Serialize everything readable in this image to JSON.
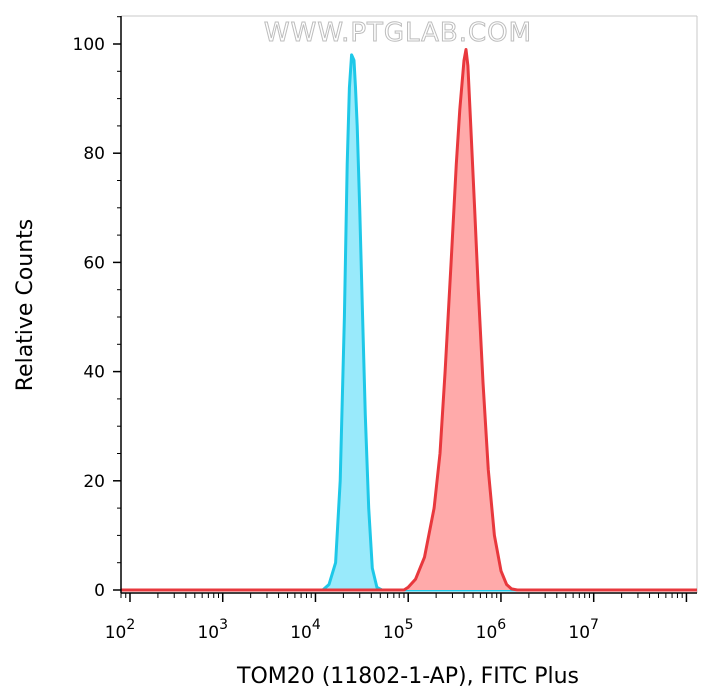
{
  "chart_data": {
    "type": "area",
    "title": "",
    "watermark": "WWW.PTGLAB.COM",
    "xlabel": "TOM20 (11802-1-AP), FITC Plus",
    "ylabel": "Relative Counts",
    "x_scale": "log",
    "xlim": [
      80,
      130000000
    ],
    "ylim": [
      0,
      105
    ],
    "grid": false,
    "x_ticks": [
      {
        "value": 100,
        "base": "10",
        "exp": "2"
      },
      {
        "value": 1000,
        "base": "10",
        "exp": "3"
      },
      {
        "value": 10000,
        "base": "10",
        "exp": "4"
      },
      {
        "value": 100000,
        "base": "10",
        "exp": "5"
      },
      {
        "value": 1000000,
        "base": "10",
        "exp": "6"
      },
      {
        "value": 10000000,
        "base": "10",
        "exp": "7"
      }
    ],
    "y_ticks": [
      0,
      20,
      40,
      60,
      80,
      100
    ],
    "series": [
      {
        "stroke": "#1ec8e8",
        "fill": "#99eafb",
        "points": [
          [
            80,
            0
          ],
          [
            3000,
            0
          ],
          [
            12000,
            0
          ],
          [
            14000,
            1
          ],
          [
            16500,
            5
          ],
          [
            18500,
            20
          ],
          [
            20500,
            50
          ],
          [
            22000,
            78
          ],
          [
            23200,
            92
          ],
          [
            24500,
            98
          ],
          [
            26000,
            97
          ],
          [
            27000,
            92
          ],
          [
            28200,
            85
          ],
          [
            30000,
            70
          ],
          [
            32000,
            52
          ],
          [
            34500,
            32
          ],
          [
            37500,
            15
          ],
          [
            41000,
            4
          ],
          [
            46000,
            0.5
          ],
          [
            52000,
            0
          ],
          [
            130000000,
            0
          ]
        ]
      },
      {
        "stroke": "#e8383d",
        "fill": "#ffaaaa",
        "points": [
          [
            80,
            0
          ],
          [
            90000,
            0
          ],
          [
            100000,
            0.5
          ],
          [
            120000,
            2
          ],
          [
            150000,
            6
          ],
          [
            190000,
            15
          ],
          [
            220000,
            25
          ],
          [
            250000,
            40
          ],
          [
            290000,
            60
          ],
          [
            330000,
            78
          ],
          [
            360000,
            88
          ],
          [
            400000,
            97
          ],
          [
            420000,
            99
          ],
          [
            440000,
            96
          ],
          [
            470000,
            86
          ],
          [
            520000,
            70
          ],
          [
            570000,
            55
          ],
          [
            640000,
            38
          ],
          [
            730000,
            22
          ],
          [
            850000,
            10
          ],
          [
            1000000,
            3.5
          ],
          [
            1150000,
            1
          ],
          [
            1300000,
            0.2
          ],
          [
            1500000,
            0
          ],
          [
            130000000,
            0
          ]
        ]
      }
    ]
  }
}
